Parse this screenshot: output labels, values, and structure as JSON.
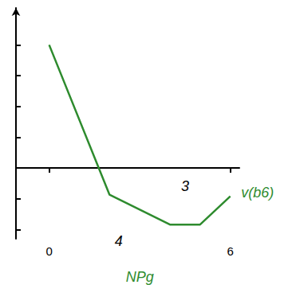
{
  "chart_data": {
    "type": "line",
    "color": "#2e8b2e",
    "x": [
      0,
      2,
      4,
      5,
      6
    ],
    "values": [
      4.0,
      -0.87,
      -1.84,
      -1.84,
      -0.92
    ],
    "xlim": [
      -1.1,
      6.3
    ],
    "xticks": [
      0,
      6
    ],
    "ylim": [
      -2.3,
      5.2
    ],
    "yticks": [
      -2,
      -1,
      1,
      2,
      3,
      4
    ],
    "tick_labels": "x",
    "grid": false,
    "annotations": [
      {
        "text": "3",
        "x": 4.5,
        "y": -0.6,
        "color": "#000000"
      },
      {
        "text": "4",
        "x": 2.3,
        "y": -2.37,
        "color": "#000000"
      },
      {
        "text": "v(b6)",
        "x": 6.9,
        "y": -0.8,
        "color": "#2e8b2e"
      },
      {
        "text": "NPg",
        "x": 3.0,
        "y": -3.55,
        "color": "#2e8b2e"
      }
    ]
  }
}
